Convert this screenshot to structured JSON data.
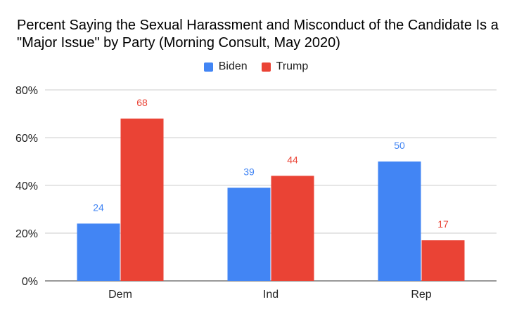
{
  "chart_data": {
    "type": "bar",
    "title": "Percent Saying the Sexual Harassment and Misconduct of the Candidate Is a \"Major Issue\" by Party (Morning Consult, May 2020)",
    "categories": [
      "Dem",
      "Ind",
      "Rep"
    ],
    "series": [
      {
        "name": "Biden",
        "color": "#4285f4",
        "values": [
          24,
          39,
          50
        ]
      },
      {
        "name": "Trump",
        "color": "#ea4335",
        "values": [
          68,
          44,
          17
        ]
      }
    ],
    "ylim": [
      0,
      80
    ],
    "yticks": [
      0,
      20,
      40,
      60,
      80
    ],
    "ytick_labels": [
      "0%",
      "20%",
      "40%",
      "60%",
      "80%"
    ],
    "xlabel": "",
    "ylabel": "",
    "legend_position": "top"
  }
}
